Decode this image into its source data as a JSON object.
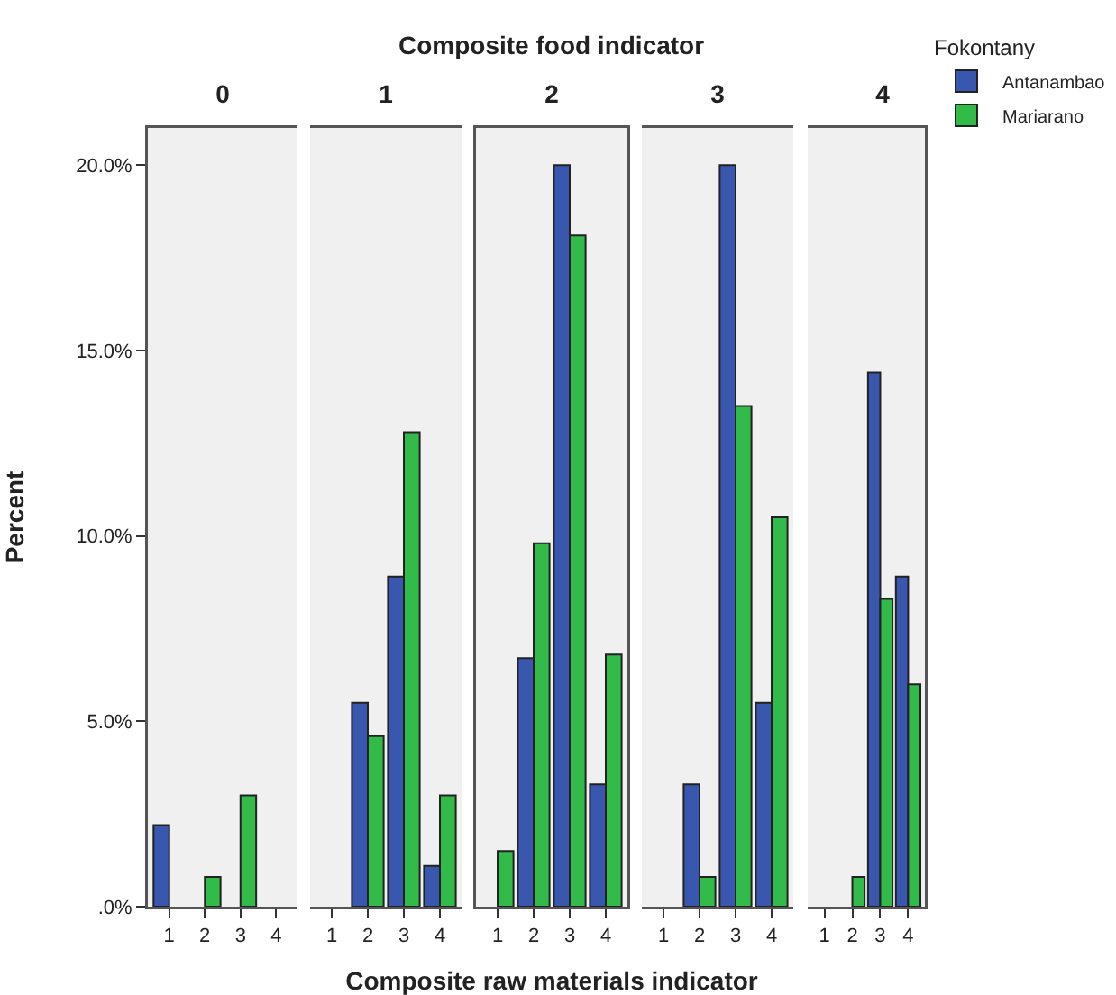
{
  "chart_data": [
    {
      "type": "bar",
      "title": "0",
      "ylabel": "Percent",
      "categories": [
        "1",
        "2",
        "3",
        "4"
      ],
      "ylim": [
        0,
        21
      ],
      "yticks": [
        {
          "value": 0,
          "label": ".0%"
        },
        {
          "value": 5,
          "label": "5.0%"
        },
        {
          "value": 10,
          "label": "10.0%"
        },
        {
          "value": 15,
          "label": "15.0%"
        },
        {
          "value": 20,
          "label": "20.0%"
        }
      ],
      "series": [
        {
          "color": "#3a57b0",
          "values": [
            2.2,
            null,
            null,
            null
          ]
        },
        {
          "color": "#33bb4a",
          "values": [
            null,
            0.8,
            3.0,
            null
          ]
        }
      ]
    },
    {
      "type": "bar",
      "title": "1",
      "categories": [
        "1",
        "2",
        "3",
        "4"
      ],
      "ylim": [
        0,
        21
      ],
      "tick_labels": "x",
      "series": [
        {
          "color": "#3a57b0",
          "values": [
            null,
            5.5,
            8.9,
            1.1
          ]
        },
        {
          "color": "#33bb4a",
          "values": [
            null,
            4.6,
            12.8,
            3.0
          ]
        }
      ]
    },
    {
      "type": "bar",
      "title": "2",
      "annotations": [
        "Composite food indicator"
      ],
      "xlabel": "Composite raw materials indicator",
      "categories": [
        "1",
        "2",
        "3",
        "4"
      ],
      "ylim": [
        0,
        21
      ],
      "tick_labels": "x",
      "series": [
        {
          "color": "#3a57b0",
          "values": [
            null,
            6.7,
            20.0,
            3.3
          ]
        },
        {
          "color": "#33bb4a",
          "values": [
            1.5,
            9.8,
            18.1,
            6.8
          ]
        }
      ]
    },
    {
      "type": "bar",
      "title": "3",
      "categories": [
        "1",
        "2",
        "3",
        "4"
      ],
      "ylim": [
        0,
        21
      ],
      "tick_labels": "x",
      "series": [
        {
          "color": "#3a57b0",
          "values": [
            null,
            3.3,
            20.0,
            5.5
          ]
        },
        {
          "color": "#33bb4a",
          "values": [
            null,
            0.8,
            13.5,
            10.5
          ]
        }
      ]
    },
    {
      "type": "bar",
      "title": "4",
      "legend_title": "Fokontany",
      "legend": "top right",
      "categories": [
        "1",
        "2",
        "3",
        "4"
      ],
      "ylim": [
        0,
        21
      ],
      "tick_labels": "x",
      "series": [
        {
          "name": "Antanambao",
          "color": "#3a57b0",
          "values": [
            null,
            null,
            14.4,
            8.9
          ]
        },
        {
          "name": "Mariarano",
          "color": "#33bb4a",
          "values": [
            null,
            0.8,
            8.3,
            6.0
          ]
        }
      ]
    }
  ]
}
